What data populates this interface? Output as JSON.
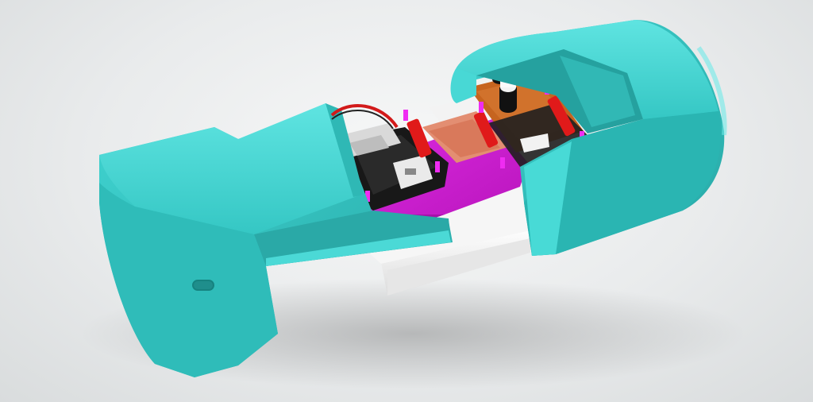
{
  "scene": {
    "subject": "3d-render-enclosure",
    "colors": {
      "background": "#e9ebec",
      "enclosure": "#3ed3d0",
      "enclosure_shadow": "#2aa9a7",
      "tray": "#d21bd6",
      "board": "#1a1a1a",
      "cable": "#e2876b",
      "orange_board": "#c6641f",
      "connector": "#e01a1a",
      "slider": "#f4f4f4"
    }
  }
}
